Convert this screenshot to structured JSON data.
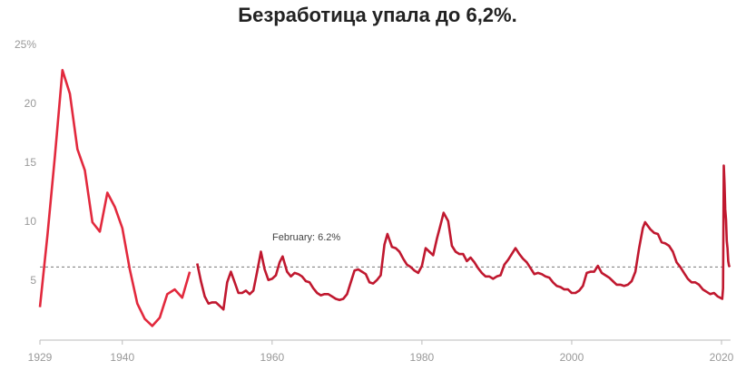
{
  "chart_data": {
    "type": "line",
    "title": "Безработица упала до 6,2%.",
    "annotation": "February: 6.2%",
    "reference_line": 6.2,
    "xlim": [
      1929,
      2021.2
    ],
    "xticks": [
      1929,
      1940,
      1960,
      1980,
      2000,
      2020
    ],
    "ylim": [
      0,
      25
    ],
    "yticks": [
      {
        "value": 25,
        "label": "25%"
      },
      20,
      15,
      10,
      5
    ],
    "grid": false,
    "series": [
      {
        "color": "#e2293d",
        "x": [
          1929,
          1930,
          1931,
          1932,
          1933,
          1934,
          1935,
          1936,
          1937,
          1938,
          1939,
          1940,
          1941,
          1942,
          1943,
          1944,
          1945,
          1946,
          1947,
          1948,
          1949
        ],
        "values": [
          2.8,
          8.9,
          15.6,
          22.9,
          20.9,
          16.2,
          14.4,
          10.0,
          9.2,
          12.5,
          11.3,
          9.5,
          6.0,
          3.1,
          1.8,
          1.2,
          1.9,
          3.9,
          4.3,
          3.6,
          5.8
        ]
      },
      {
        "color": "#c0182f",
        "x": [
          1950,
          1950.5,
          1951,
          1951.5,
          1952,
          1952.5,
          1953,
          1953.5,
          1954,
          1954.5,
          1955,
          1955.5,
          1956,
          1956.5,
          1957,
          1957.5,
          1958,
          1958.5,
          1959,
          1959.5,
          1960,
          1960.5,
          1961,
          1961.4,
          1962,
          1962.5,
          1963,
          1963.5,
          1964,
          1964.5,
          1965,
          1965.5,
          1966,
          1966.5,
          1967,
          1967.5,
          1968,
          1968.5,
          1969,
          1969.5,
          1970,
          1970.5,
          1971,
          1971.5,
          1972,
          1972.5,
          1973,
          1973.5,
          1974,
          1974.5,
          1975,
          1975.4,
          1976,
          1976.5,
          1977,
          1977.5,
          1978,
          1978.5,
          1979,
          1979.5,
          1980,
          1980.5,
          1981,
          1981.5,
          1982,
          1982.5,
          1982.9,
          1983.5,
          1984,
          1984.5,
          1985,
          1985.5,
          1986,
          1986.5,
          1987,
          1987.5,
          1988,
          1988.5,
          1989,
          1989.5,
          1990,
          1990.5,
          1991,
          1991.5,
          1992,
          1992.5,
          1993,
          1993.5,
          1994,
          1994.5,
          1995,
          1995.5,
          1996,
          1996.5,
          1997,
          1997.5,
          1998,
          1998.5,
          1999,
          1999.5,
          2000,
          2000.5,
          2001,
          2001.5,
          2002,
          2002.5,
          2003,
          2003.5,
          2004,
          2004.5,
          2005,
          2005.5,
          2006,
          2006.5,
          2007,
          2007.5,
          2008,
          2008.5,
          2009,
          2009.5,
          2009.8,
          2010.5,
          2011,
          2011.5,
          2012,
          2012.5,
          2013,
          2013.5,
          2014,
          2014.5,
          2015,
          2015.5,
          2016,
          2016.5,
          2017,
          2017.5,
          2018,
          2018.5,
          2019,
          2019.5,
          2020.1,
          2020.2,
          2020.3,
          2020.4,
          2020.5,
          2020.6,
          2020.7,
          2020.8,
          2020.9,
          2021,
          2021.1
        ],
        "values": [
          6.5,
          5.0,
          3.7,
          3.1,
          3.2,
          3.2,
          2.9,
          2.6,
          4.9,
          5.8,
          4.9,
          4.0,
          4.0,
          4.2,
          3.9,
          4.2,
          5.8,
          7.5,
          6.0,
          5.1,
          5.2,
          5.5,
          6.6,
          7.1,
          5.8,
          5.4,
          5.7,
          5.6,
          5.4,
          5.0,
          4.9,
          4.4,
          4.0,
          3.8,
          3.9,
          3.9,
          3.7,
          3.5,
          3.4,
          3.5,
          3.9,
          4.9,
          5.9,
          6.0,
          5.8,
          5.6,
          4.9,
          4.8,
          5.1,
          5.5,
          8.1,
          9.0,
          7.9,
          7.8,
          7.5,
          6.9,
          6.4,
          6.2,
          5.9,
          5.7,
          6.3,
          7.8,
          7.5,
          7.2,
          8.6,
          9.8,
          10.8,
          10.1,
          8.0,
          7.5,
          7.3,
          7.3,
          6.7,
          7.0,
          6.6,
          6.1,
          5.7,
          5.4,
          5.4,
          5.2,
          5.4,
          5.5,
          6.4,
          6.8,
          7.3,
          7.8,
          7.3,
          6.9,
          6.6,
          6.1,
          5.6,
          5.7,
          5.6,
          5.4,
          5.3,
          4.9,
          4.6,
          4.5,
          4.3,
          4.3,
          4.0,
          4.0,
          4.2,
          4.6,
          5.7,
          5.8,
          5.8,
          6.3,
          5.7,
          5.5,
          5.3,
          5.0,
          4.7,
          4.7,
          4.6,
          4.7,
          5.0,
          5.8,
          7.8,
          9.5,
          10.0,
          9.4,
          9.1,
          9.0,
          8.3,
          8.2,
          8.0,
          7.5,
          6.6,
          6.2,
          5.7,
          5.2,
          4.9,
          4.9,
          4.7,
          4.3,
          4.1,
          3.9,
          4.0,
          3.7,
          3.5,
          4.4,
          14.8,
          13.3,
          11.1,
          10.2,
          8.4,
          7.8,
          6.7,
          6.3,
          6.2
        ]
      }
    ]
  }
}
